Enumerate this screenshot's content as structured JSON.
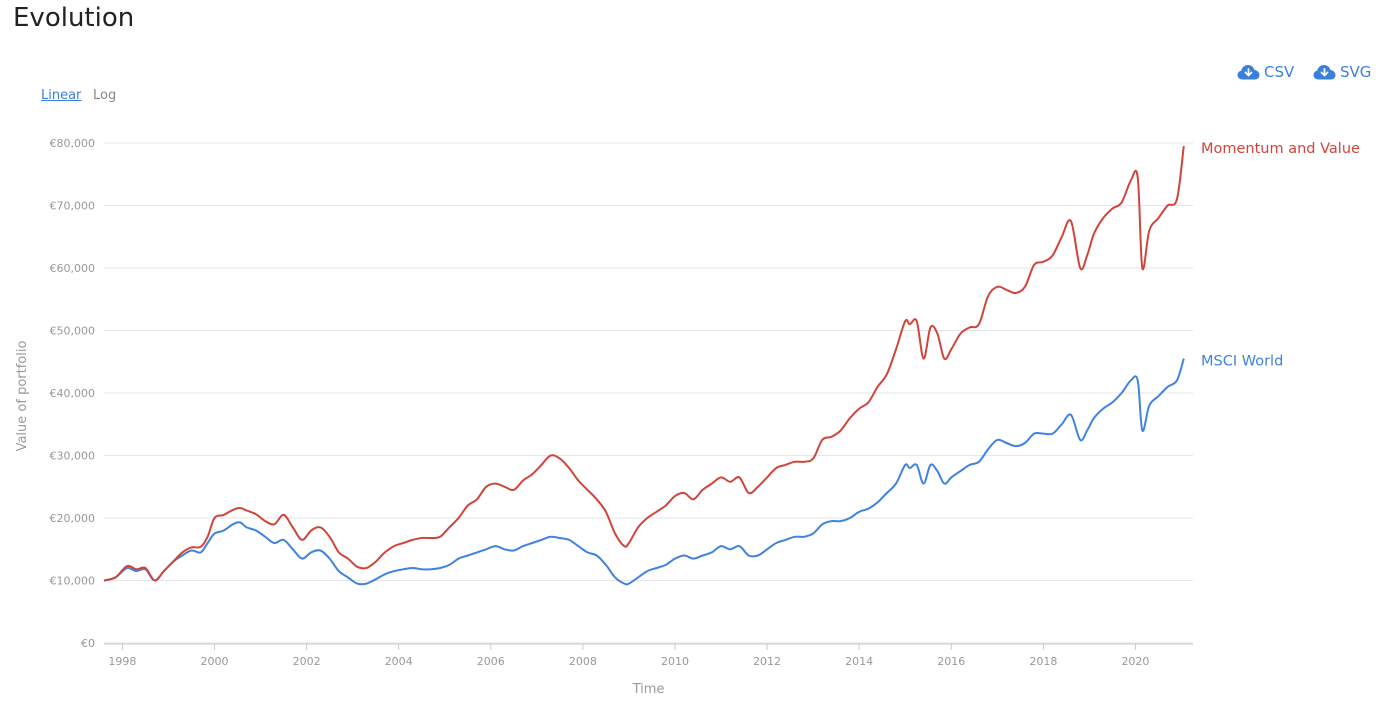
{
  "page": {
    "title": "Evolution"
  },
  "downloads": {
    "csv_label": "CSV",
    "svg_label": "SVG",
    "icon": "cloud-download-icon",
    "color": "#3a7fdb"
  },
  "scale": {
    "linear_label": "Linear",
    "log_label": "Log",
    "selected": "Linear"
  },
  "chart_data": {
    "type": "line",
    "title": "",
    "xlabel": "Time",
    "ylabel": "Value of portfolio",
    "xlim": [
      1997.6,
      2021.25
    ],
    "ylim": [
      0,
      80000
    ],
    "x_ticks": [
      1998,
      2000,
      2002,
      2004,
      2006,
      2008,
      2010,
      2012,
      2014,
      2016,
      2018,
      2020
    ],
    "y_ticks": [
      0,
      10000,
      20000,
      30000,
      40000,
      50000,
      60000,
      70000,
      80000
    ],
    "y_tick_labels": [
      "€0",
      "€10,000",
      "€20,000",
      "€30,000",
      "€40,000",
      "€50,000",
      "€60,000",
      "€70,000",
      "€80,000"
    ],
    "grid": "horizontal",
    "legend": "end-of-line labels",
    "series": [
      {
        "name": "Momentum and Value",
        "color": "#d0443a",
        "x": [
          1997.6,
          1997.85,
          1998.1,
          1998.3,
          1998.5,
          1998.7,
          1998.9,
          1999.1,
          1999.3,
          1999.5,
          1999.7,
          1999.85,
          2000.0,
          2000.2,
          2000.4,
          2000.55,
          2000.7,
          2000.9,
          2001.1,
          2001.3,
          2001.5,
          2001.7,
          2001.9,
          2002.1,
          2002.3,
          2002.5,
          2002.7,
          2002.9,
          2003.1,
          2003.3,
          2003.5,
          2003.7,
          2003.9,
          2004.1,
          2004.3,
          2004.5,
          2004.7,
          2004.9,
          2005.1,
          2005.3,
          2005.5,
          2005.7,
          2005.9,
          2006.1,
          2006.3,
          2006.5,
          2006.7,
          2006.9,
          2007.1,
          2007.3,
          2007.5,
          2007.7,
          2007.9,
          2008.1,
          2008.3,
          2008.5,
          2008.7,
          2008.9,
          2009.0,
          2009.2,
          2009.4,
          2009.6,
          2009.8,
          2010.0,
          2010.2,
          2010.4,
          2010.6,
          2010.8,
          2011.0,
          2011.2,
          2011.4,
          2011.6,
          2011.8,
          2012.0,
          2012.2,
          2012.4,
          2012.6,
          2012.8,
          2013.0,
          2013.2,
          2013.4,
          2013.6,
          2013.8,
          2014.0,
          2014.2,
          2014.4,
          2014.6,
          2014.8,
          2015.0,
          2015.1,
          2015.25,
          2015.4,
          2015.55,
          2015.7,
          2015.85,
          2016.0,
          2016.2,
          2016.4,
          2016.6,
          2016.8,
          2017.0,
          2017.2,
          2017.4,
          2017.6,
          2017.8,
          2018.0,
          2018.2,
          2018.4,
          2018.6,
          2018.8,
          2018.95,
          2019.1,
          2019.3,
          2019.5,
          2019.7,
          2019.9,
          2020.05,
          2020.15,
          2020.3,
          2020.5,
          2020.7,
          2020.9,
          2021.05
        ],
        "values": [
          10000,
          10500,
          12300,
          11800,
          12000,
          10000,
          11500,
          13000,
          14500,
          15300,
          15400,
          17000,
          20000,
          20500,
          21300,
          21600,
          21200,
          20600,
          19500,
          19000,
          20500,
          18500,
          16500,
          18000,
          18500,
          17000,
          14500,
          13500,
          12200,
          12000,
          13000,
          14500,
          15500,
          16000,
          16500,
          16800,
          16800,
          17000,
          18500,
          20000,
          22000,
          23000,
          25000,
          25500,
          25000,
          24500,
          26000,
          27000,
          28500,
          30000,
          29500,
          28000,
          26000,
          24500,
          23000,
          21000,
          17500,
          15500,
          16000,
          18500,
          20000,
          21000,
          22000,
          23500,
          24000,
          23000,
          24500,
          25500,
          26500,
          25800,
          26500,
          24000,
          25000,
          26500,
          28000,
          28500,
          29000,
          29000,
          29500,
          32500,
          33000,
          34000,
          36000,
          37500,
          38500,
          41000,
          43000,
          47000,
          51500,
          51000,
          51500,
          45500,
          50500,
          49500,
          45500,
          47000,
          49500,
          50500,
          51000,
          55500,
          57000,
          56500,
          56000,
          57000,
          60500,
          61000,
          62000,
          65000,
          67500,
          60000,
          62000,
          65500,
          68000,
          69500,
          70500,
          74000,
          74500,
          60000,
          66000,
          68000,
          70000,
          71000,
          79500
        ]
      },
      {
        "name": "MSCI World",
        "color": "#3f82e0",
        "x": [
          1997.6,
          1997.85,
          1998.1,
          1998.3,
          1998.5,
          1998.7,
          1998.9,
          1999.1,
          1999.3,
          1999.5,
          1999.7,
          1999.85,
          2000.0,
          2000.2,
          2000.4,
          2000.55,
          2000.7,
          2000.9,
          2001.1,
          2001.3,
          2001.5,
          2001.7,
          2001.9,
          2002.1,
          2002.3,
          2002.5,
          2002.7,
          2002.9,
          2003.1,
          2003.3,
          2003.5,
          2003.7,
          2003.9,
          2004.1,
          2004.3,
          2004.5,
          2004.7,
          2004.9,
          2005.1,
          2005.3,
          2005.5,
          2005.7,
          2005.9,
          2006.1,
          2006.3,
          2006.5,
          2006.7,
          2006.9,
          2007.1,
          2007.3,
          2007.5,
          2007.7,
          2007.9,
          2008.1,
          2008.3,
          2008.5,
          2008.7,
          2008.9,
          2009.0,
          2009.2,
          2009.4,
          2009.6,
          2009.8,
          2010.0,
          2010.2,
          2010.4,
          2010.6,
          2010.8,
          2011.0,
          2011.2,
          2011.4,
          2011.6,
          2011.8,
          2012.0,
          2012.2,
          2012.4,
          2012.6,
          2012.8,
          2013.0,
          2013.2,
          2013.4,
          2013.6,
          2013.8,
          2014.0,
          2014.2,
          2014.4,
          2014.6,
          2014.8,
          2015.0,
          2015.1,
          2015.25,
          2015.4,
          2015.55,
          2015.7,
          2015.85,
          2016.0,
          2016.2,
          2016.4,
          2016.6,
          2016.8,
          2017.0,
          2017.2,
          2017.4,
          2017.6,
          2017.8,
          2018.0,
          2018.2,
          2018.4,
          2018.6,
          2018.8,
          2018.95,
          2019.1,
          2019.3,
          2019.5,
          2019.7,
          2019.9,
          2020.05,
          2020.15,
          2020.3,
          2020.5,
          2020.7,
          2020.9,
          2021.05
        ],
        "values": [
          10000,
          10500,
          12000,
          11500,
          11800,
          10000,
          11500,
          13000,
          14000,
          14800,
          14500,
          16000,
          17500,
          18000,
          19000,
          19300,
          18500,
          18000,
          17000,
          16000,
          16500,
          15000,
          13500,
          14500,
          14800,
          13500,
          11500,
          10500,
          9500,
          9500,
          10200,
          11000,
          11500,
          11800,
          12000,
          11800,
          11800,
          12000,
          12500,
          13500,
          14000,
          14500,
          15000,
          15500,
          15000,
          14800,
          15500,
          16000,
          16500,
          17000,
          16800,
          16500,
          15500,
          14500,
          14000,
          12500,
          10500,
          9500,
          9500,
          10500,
          11500,
          12000,
          12500,
          13500,
          14000,
          13500,
          14000,
          14500,
          15500,
          15000,
          15500,
          14000,
          14000,
          15000,
          16000,
          16500,
          17000,
          17000,
          17500,
          19000,
          19500,
          19500,
          20000,
          21000,
          21500,
          22500,
          24000,
          25500,
          28500,
          28000,
          28500,
          25500,
          28500,
          27500,
          25500,
          26500,
          27500,
          28500,
          29000,
          31000,
          32500,
          32000,
          31500,
          32000,
          33500,
          33500,
          33500,
          35000,
          36500,
          32500,
          34000,
          36000,
          37500,
          38500,
          40000,
          42000,
          42000,
          34000,
          38000,
          39500,
          41000,
          42000,
          45500
        ]
      }
    ]
  }
}
